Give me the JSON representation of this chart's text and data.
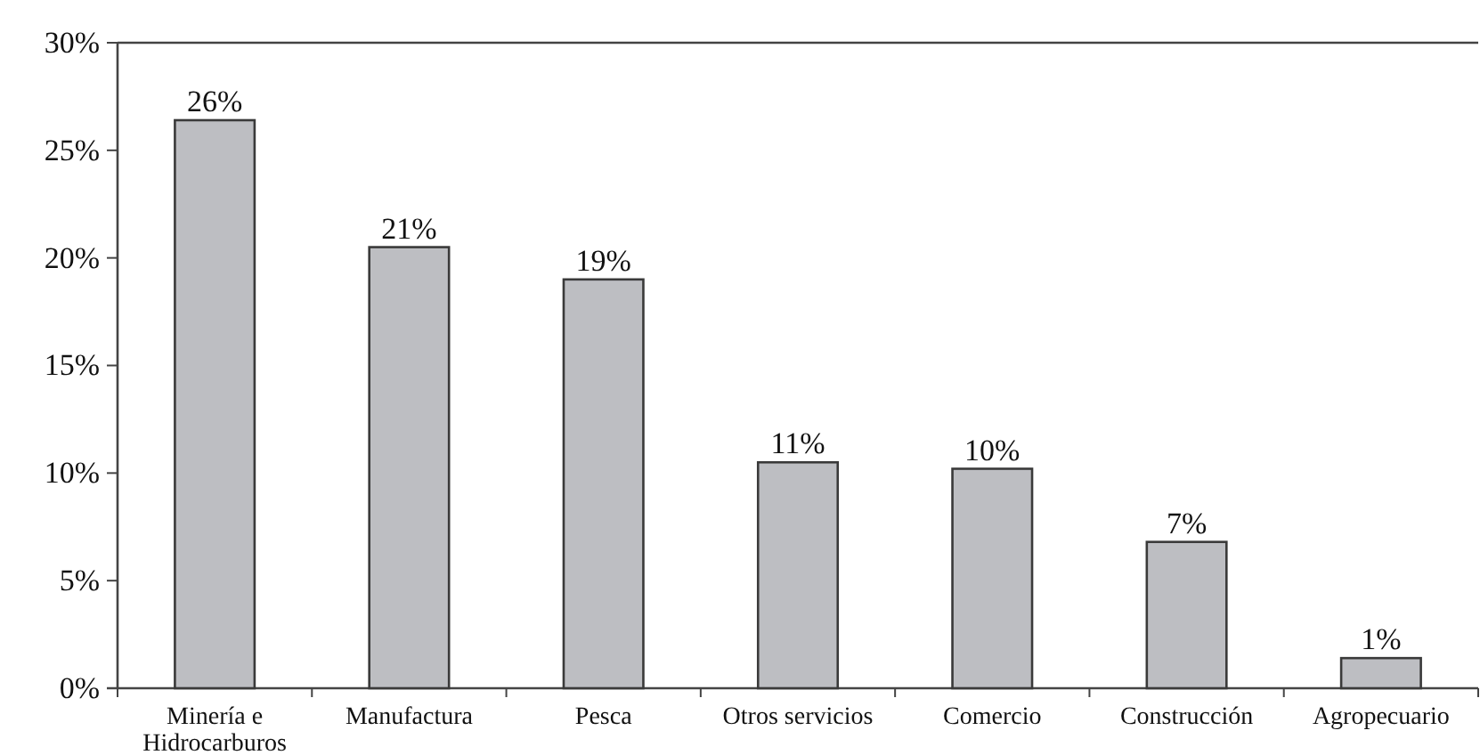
{
  "chart_data": {
    "type": "bar",
    "categories": [
      "Minería e Hidrocarburos",
      "Manufactura",
      "Pesca",
      "Otros servicios",
      "Comercio",
      "Construcción",
      "Agropecuario"
    ],
    "values": [
      26.4,
      20.5,
      19.0,
      10.5,
      10.2,
      6.8,
      1.4
    ],
    "value_labels": [
      "26%",
      "21%",
      "19%",
      "11%",
      "10%",
      "7%",
      "1%"
    ],
    "color": "#bdbec2",
    "ylim": [
      0,
      30
    ],
    "yticks": [
      {
        "value": 0,
        "label": "0%"
      },
      {
        "value": 5,
        "label": "5%"
      },
      {
        "value": 10,
        "label": "10%"
      },
      {
        "value": 15,
        "label": "15%"
      },
      {
        "value": 20,
        "label": "20%"
      },
      {
        "value": 25,
        "label": "25%"
      },
      {
        "value": 30,
        "label": "30%"
      }
    ]
  }
}
